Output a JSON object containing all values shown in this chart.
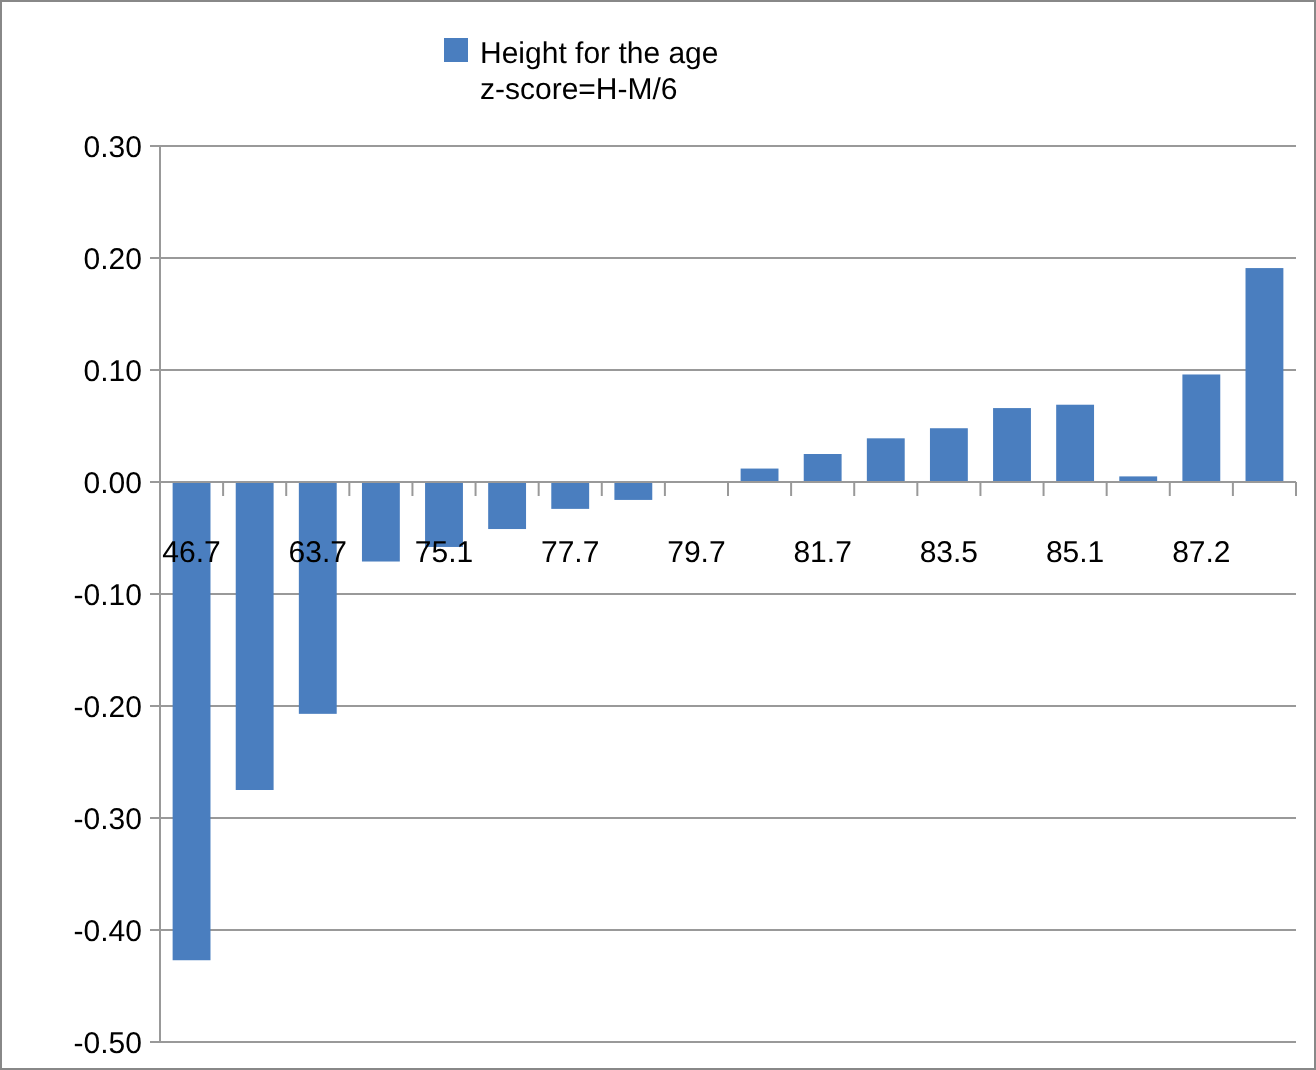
{
  "chart_data": {
    "type": "bar",
    "categories": [
      "46.7",
      null,
      "63.7",
      null,
      "75.1",
      null,
      "77.7",
      null,
      "79.7",
      null,
      "81.7",
      null,
      "83.5",
      null,
      "85.1",
      null,
      "87.2",
      null
    ],
    "series": [
      {
        "name": "Height for the age z-score=H-M/6",
        "color": "#4a7ebf",
        "values": [
          -0.427,
          -0.275,
          -0.207,
          -0.071,
          -0.058,
          -0.042,
          -0.024,
          -0.016,
          0,
          0.012,
          0.025,
          0.039,
          0.048,
          0.066,
          0.069,
          0.005,
          0.096,
          0.191
        ]
      }
    ],
    "ylim": [
      -0.5,
      0.3
    ],
    "yticks": [
      {
        "value": -0.5,
        "label": "-0.50"
      },
      {
        "value": -0.4,
        "label": "-0.40"
      },
      {
        "value": -0.3,
        "label": "-0.30"
      },
      {
        "value": -0.2,
        "label": "-0.20"
      },
      {
        "value": -0.1,
        "label": "-0.10"
      },
      {
        "value": 0,
        "label": "0.00"
      },
      {
        "value": 0.1,
        "label": "0.10"
      },
      {
        "value": 0.2,
        "label": "0.20"
      },
      {
        "value": 0.3,
        "label": "0.30"
      }
    ],
    "grid": "y",
    "legend": "top"
  }
}
